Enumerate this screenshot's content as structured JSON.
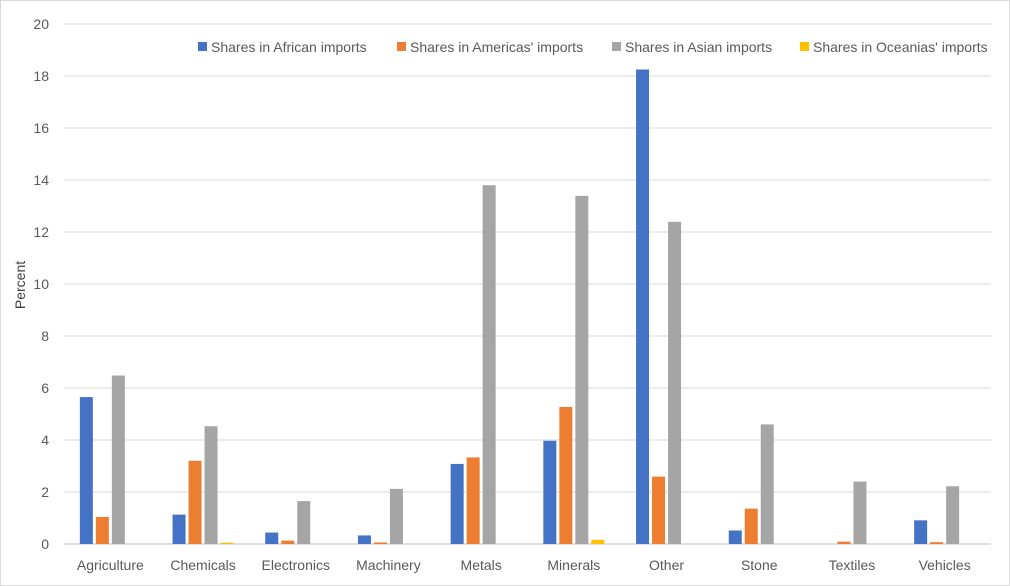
{
  "chart_data": {
    "type": "bar",
    "title": "",
    "xlabel": "",
    "ylabel": "Percent",
    "ylim": [
      0,
      20
    ],
    "yticks": [
      0,
      2,
      4,
      6,
      8,
      10,
      12,
      14,
      16,
      18,
      20
    ],
    "grid": true,
    "legend_position": "top-right",
    "categories": [
      "Agriculture",
      "Chemicals",
      "Electronics",
      "Machinery",
      "Metals",
      "Minerals",
      "Other",
      "Stone",
      "Textiles",
      "Vehicles"
    ],
    "series": [
      {
        "name": "Shares in African imports",
        "color": "#4472c4",
        "values": [
          5.65,
          1.13,
          0.44,
          0.33,
          3.08,
          3.97,
          18.25,
          0.52,
          0.0,
          0.91
        ]
      },
      {
        "name": "Shares in Americas' imports",
        "color": "#ed7d31",
        "values": [
          1.04,
          3.2,
          0.13,
          0.06,
          3.33,
          5.27,
          2.59,
          1.36,
          0.09,
          0.07
        ]
      },
      {
        "name": "Shares in Asian imports",
        "color": "#a5a5a5",
        "values": [
          6.48,
          4.53,
          1.65,
          2.12,
          13.8,
          13.39,
          12.39,
          4.6,
          2.4,
          2.22
        ]
      },
      {
        "name": "Shares in Oceanias' imports",
        "color": "#ffc000",
        "values": [
          0.0,
          0.05,
          0.0,
          0.0,
          0.0,
          0.16,
          0.0,
          0.0,
          0.0,
          0.0
        ]
      }
    ]
  }
}
